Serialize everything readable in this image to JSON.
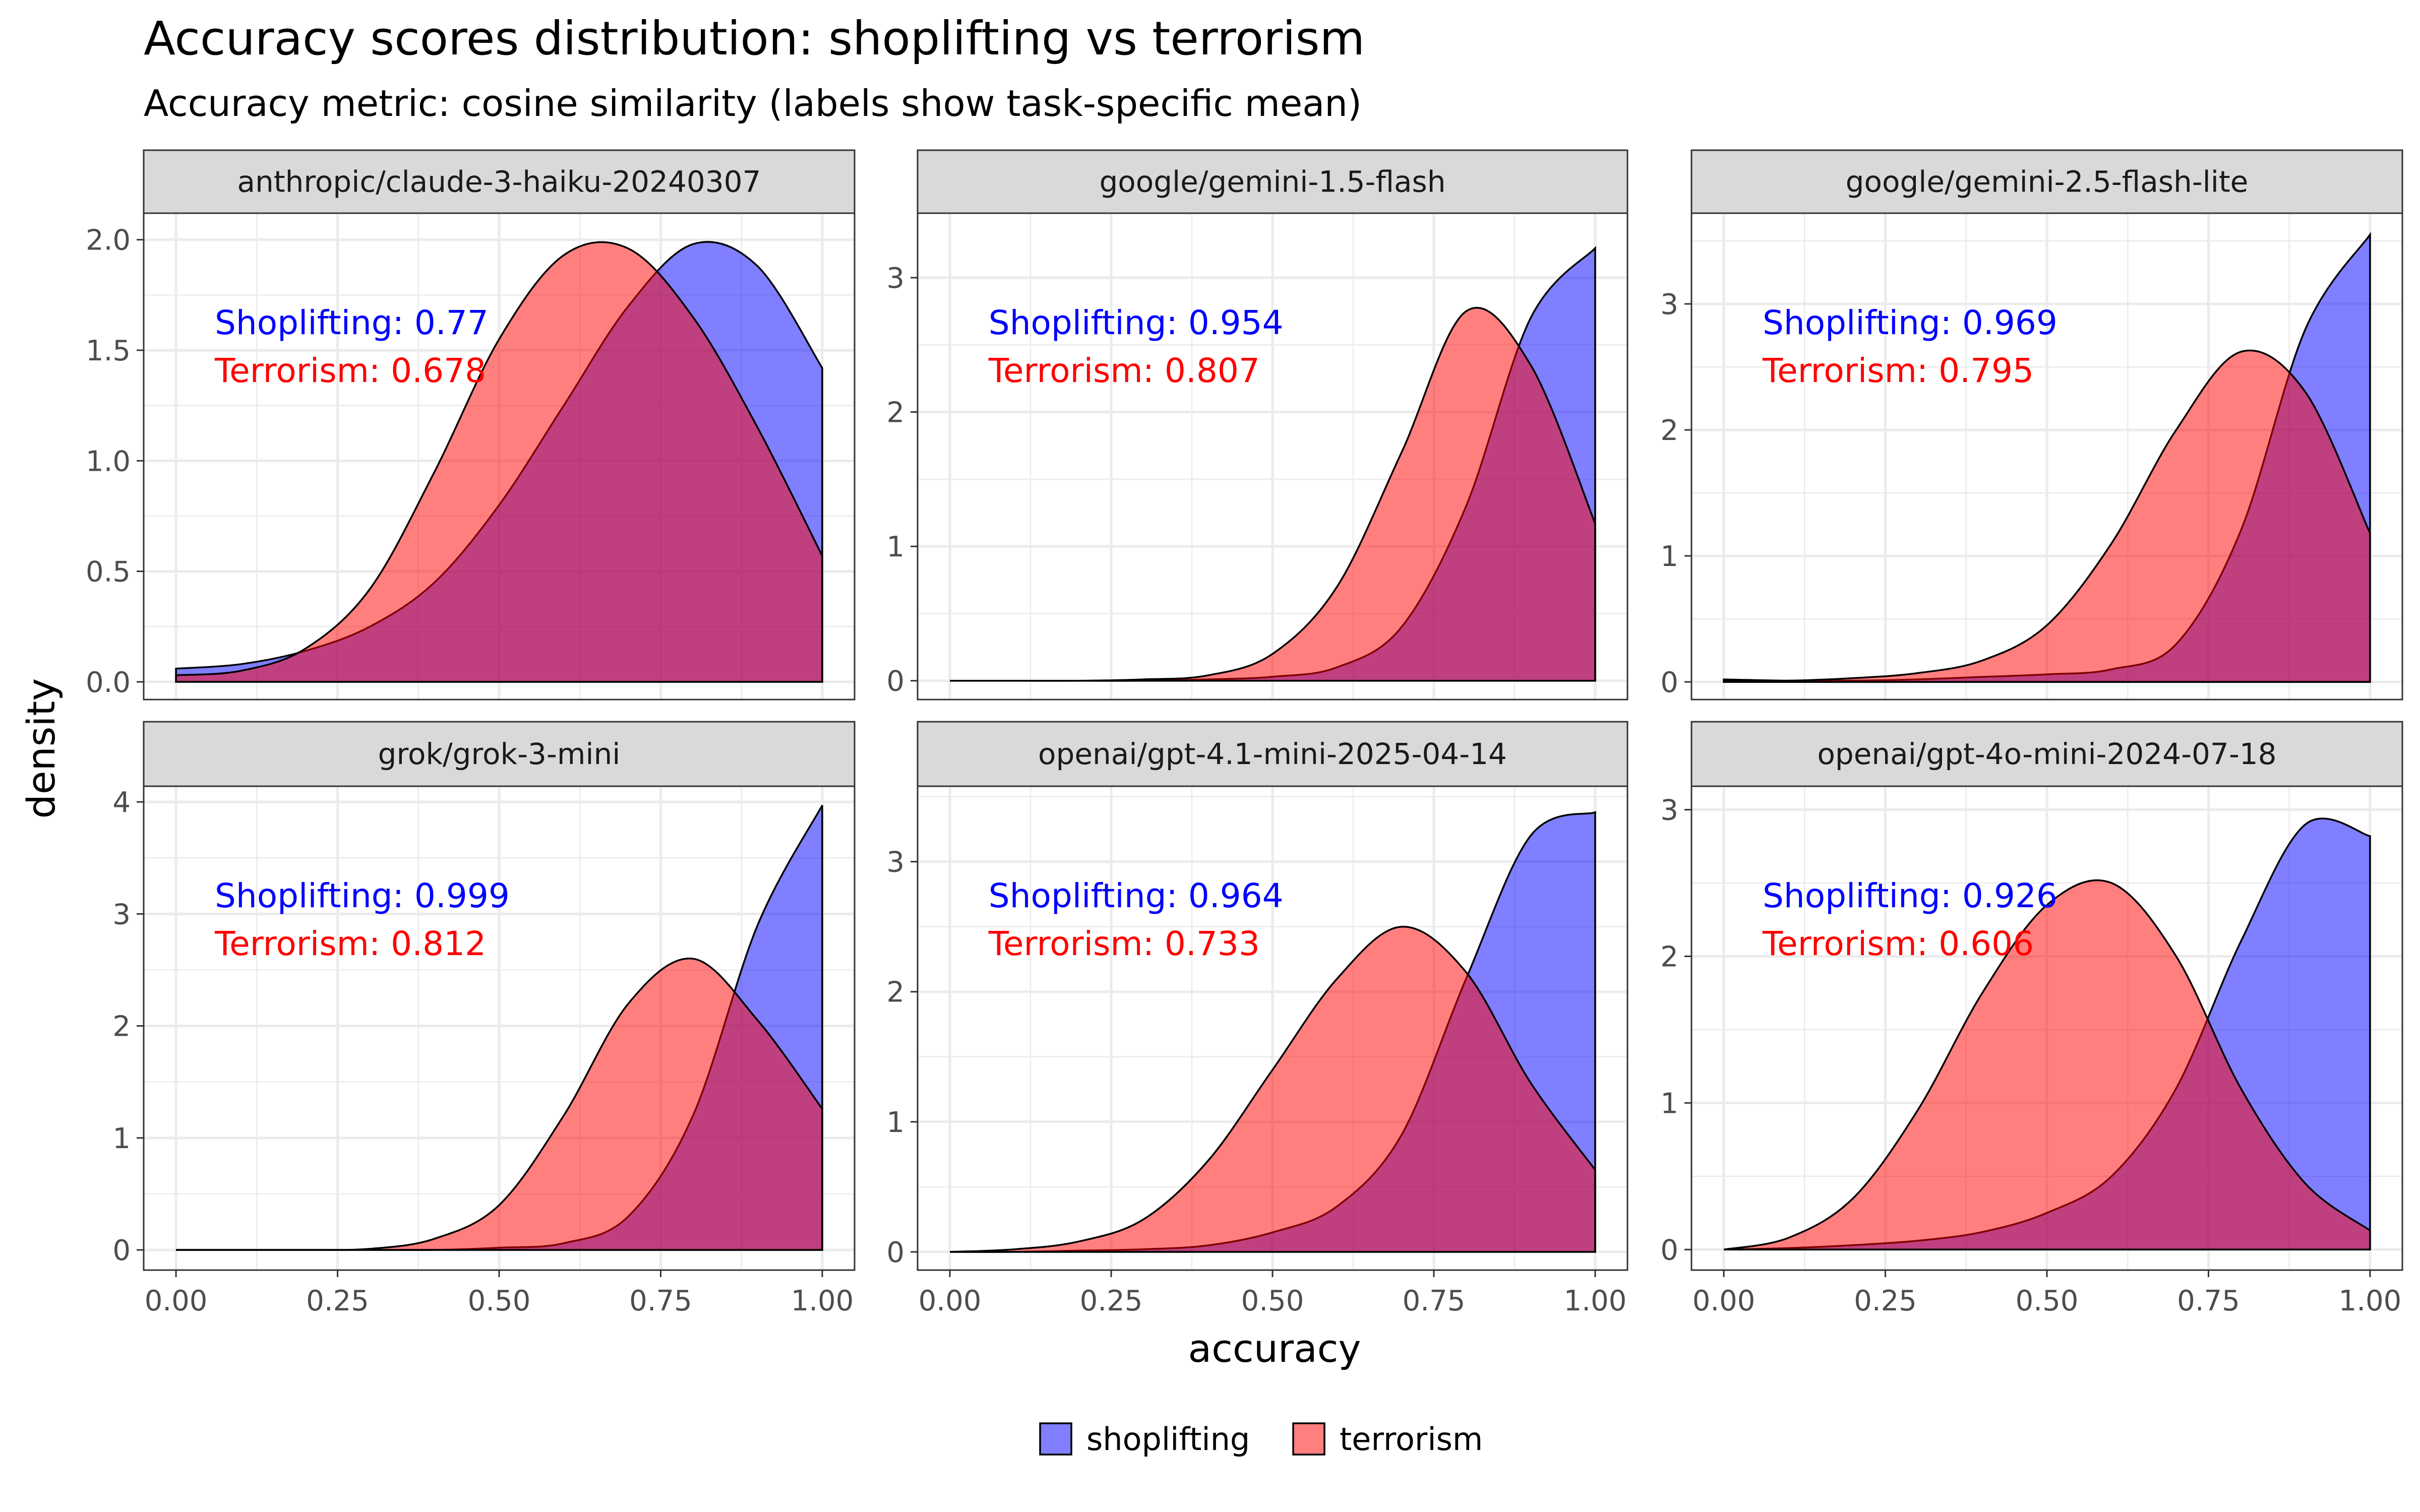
{
  "title": "Accuracy scores distribution: shoplifting vs terrorism",
  "subtitle": "Accuracy metric: cosine similarity (labels show task-specific mean)",
  "colors": {
    "shoplifting": "#0000ff",
    "terrorism": "#ff0000",
    "text_shoplifting": "#0000ff",
    "text_terrorism": "#ff0000"
  },
  "chart_data": {
    "type": "area",
    "xlabel": "accuracy",
    "ylabel": "density",
    "xlim": [
      0,
      1
    ],
    "x_ticks": [
      0,
      0.25,
      0.5,
      0.75,
      1
    ],
    "x_tick_labels": [
      "0.00",
      "0.25",
      "0.50",
      "0.75",
      "1.00"
    ],
    "grid": true,
    "legend": {
      "position": "bottom",
      "entries": [
        {
          "key": "shoplifting",
          "label": "shoplifting"
        },
        {
          "key": "terrorism",
          "label": "terrorism"
        }
      ]
    },
    "x": [
      0,
      0.1,
      0.2,
      0.3,
      0.4,
      0.5,
      0.6,
      0.7,
      0.8,
      0.9,
      1.0
    ],
    "panels": [
      {
        "name": "anthropic/claude-3-haiku-20240307",
        "ylim": [
          -0.08,
          2.12
        ],
        "y_ticks": [
          0,
          0.5,
          1,
          1.5,
          2
        ],
        "y_tick_labels": [
          "0.0",
          "0.5",
          "1.0",
          "1.5",
          "2.0"
        ],
        "labels": {
          "shoplifting": "Shoplifting: 0.77",
          "terrorism": "Terrorism: 0.678"
        },
        "series": [
          {
            "name": "shoplifting",
            "values": [
              0.06,
              0.08,
              0.14,
              0.25,
              0.45,
              0.8,
              1.25,
              1.7,
              1.98,
              1.88,
              1.42
            ]
          },
          {
            "name": "terrorism",
            "values": [
              0.03,
              0.05,
              0.15,
              0.42,
              0.95,
              1.55,
              1.93,
              1.96,
              1.65,
              1.15,
              0.57
            ]
          }
        ]
      },
      {
        "name": "google/gemini-1.5-flash",
        "ylim": [
          -0.14,
          3.48
        ],
        "y_ticks": [
          0,
          1,
          2,
          3
        ],
        "y_tick_labels": [
          "0",
          "1",
          "2",
          "3"
        ],
        "labels": {
          "shoplifting": "Shoplifting: 0.954",
          "terrorism": "Terrorism: 0.807"
        },
        "series": [
          {
            "name": "shoplifting",
            "values": [
              0,
              0,
              0,
              0,
              0.01,
              0.03,
              0.1,
              0.4,
              1.3,
              2.7,
              3.22
            ]
          },
          {
            "name": "terrorism",
            "values": [
              0,
              0,
              0,
              0.01,
              0.04,
              0.2,
              0.7,
              1.7,
              2.75,
              2.35,
              1.17
            ]
          }
        ]
      },
      {
        "name": "google/gemini-2.5-flash-lite",
        "ylim": [
          -0.14,
          3.72
        ],
        "y_ticks": [
          0,
          1,
          2,
          3
        ],
        "y_tick_labels": [
          "0",
          "1",
          "2",
          "3"
        ],
        "labels": {
          "shoplifting": "Shoplifting: 0.969",
          "terrorism": "Terrorism: 0.795"
        },
        "series": [
          {
            "name": "shoplifting",
            "values": [
              0.02,
              0.01,
              0.01,
              0.02,
              0.04,
              0.06,
              0.1,
              0.3,
              1.2,
              2.8,
              3.55
            ]
          },
          {
            "name": "terrorism",
            "values": [
              0.01,
              0.01,
              0.03,
              0.07,
              0.17,
              0.45,
              1.1,
              2.0,
              2.62,
              2.3,
              1.18
            ]
          }
        ]
      },
      {
        "name": "grok/grok-3-mini",
        "ylim": [
          -0.18,
          4.14
        ],
        "y_ticks": [
          0,
          1,
          2,
          3,
          4
        ],
        "y_tick_labels": [
          "0",
          "1",
          "2",
          "3",
          "4"
        ],
        "labels": {
          "shoplifting": "Shoplifting: 0.999",
          "terrorism": "Terrorism: 0.812"
        },
        "series": [
          {
            "name": "shoplifting",
            "values": [
              0,
              0,
              0,
              0,
              0,
              0.02,
              0.06,
              0.3,
              1.2,
              2.9,
              3.97
            ]
          },
          {
            "name": "terrorism",
            "values": [
              0,
              0,
              0,
              0.01,
              0.1,
              0.4,
              1.2,
              2.2,
              2.6,
              2.05,
              1.26
            ]
          }
        ]
      },
      {
        "name": "openai/gpt-4.1-mini-2025-04-14",
        "ylim": [
          -0.14,
          3.58
        ],
        "y_ticks": [
          0,
          1,
          2,
          3
        ],
        "y_tick_labels": [
          "0",
          "1",
          "2",
          "3"
        ],
        "labels": {
          "shoplifting": "Shoplifting: 0.964",
          "terrorism": "Terrorism: 0.733"
        },
        "series": [
          {
            "name": "shoplifting",
            "values": [
              0,
              0,
              0.01,
              0.02,
              0.05,
              0.15,
              0.35,
              0.9,
              2.1,
              3.2,
              3.38
            ]
          },
          {
            "name": "terrorism",
            "values": [
              0,
              0.02,
              0.08,
              0.25,
              0.7,
              1.4,
              2.1,
              2.5,
              2.15,
              1.3,
              0.63
            ]
          }
        ]
      },
      {
        "name": "openai/gpt-4o-mini-2024-07-18",
        "ylim": [
          -0.14,
          3.16
        ],
        "y_ticks": [
          0,
          1,
          2,
          3
        ],
        "y_tick_labels": [
          "0",
          "1",
          "2",
          "3"
        ],
        "labels": {
          "shoplifting": "Shoplifting: 0.926",
          "terrorism": "Terrorism: 0.606"
        },
        "series": [
          {
            "name": "shoplifting",
            "values": [
              0,
              0.01,
              0.03,
              0.06,
              0.12,
              0.25,
              0.5,
              1.1,
              2.1,
              2.9,
              2.82
            ]
          },
          {
            "name": "terrorism",
            "values": [
              0,
              0.08,
              0.35,
              0.95,
              1.75,
              2.35,
              2.5,
              2.0,
              1.1,
              0.45,
              0.13
            ]
          }
        ]
      }
    ]
  }
}
